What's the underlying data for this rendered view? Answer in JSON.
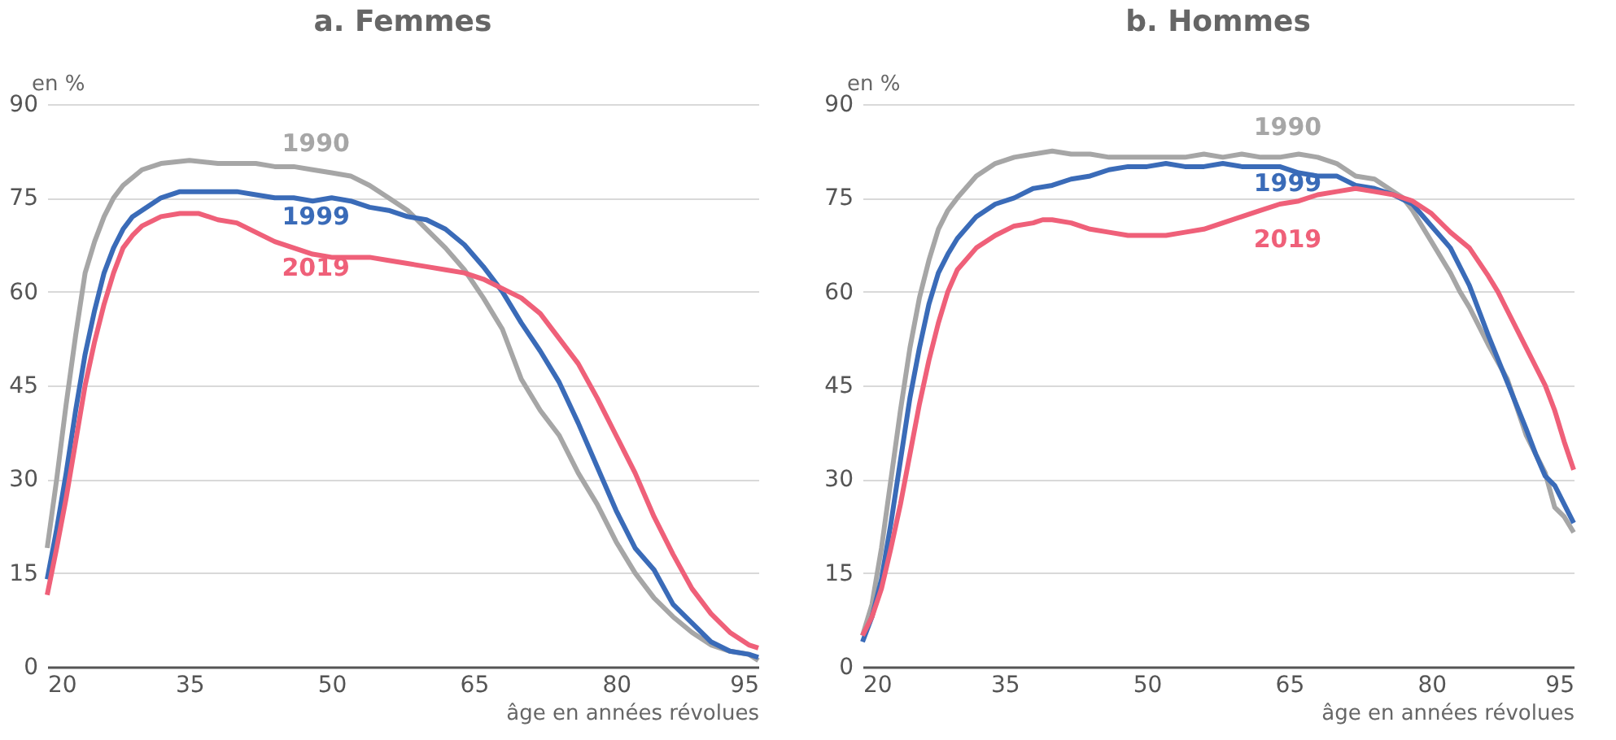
{
  "chart_data": [
    {
      "type": "line",
      "title": "a. Femmes",
      "ylabel": "en %",
      "xlabel": "âge en années révolues",
      "xlim": [
        20,
        95
      ],
      "xticks": [
        20,
        35,
        50,
        65,
        80,
        95
      ],
      "ylim": [
        0,
        90
      ],
      "yticks": [
        0,
        15,
        30,
        45,
        60,
        75,
        90
      ],
      "grid": "y",
      "legend": false,
      "marker": "none",
      "line_style": "solid",
      "series": [
        {
          "name": "1990",
          "color": "#a6a6a6",
          "x": [
            20,
            21,
            22,
            23,
            24,
            25,
            26,
            27,
            28,
            30,
            32,
            35,
            38,
            40,
            42,
            44,
            46,
            48,
            50,
            52,
            54,
            56,
            58,
            60,
            62,
            64,
            66,
            68,
            69,
            70,
            72,
            74,
            76,
            78,
            80,
            82,
            84,
            86,
            88,
            90,
            92,
            94,
            95
          ],
          "values": [
            19,
            30,
            42,
            53,
            63,
            68,
            72,
            75,
            77,
            79.5,
            80.5,
            81,
            80.5,
            80.5,
            80.5,
            80,
            80,
            79.5,
            79,
            78.5,
            77,
            75,
            73,
            70,
            67,
            63.5,
            59,
            54,
            50,
            46,
            41,
            37,
            31,
            26,
            20,
            15,
            11,
            8,
            5.5,
            3.5,
            2.5,
            2,
            1
          ]
        },
        {
          "name": "1999",
          "color": "#3a6bb8",
          "x": [
            20,
            21,
            22,
            23,
            24,
            25,
            26,
            27,
            28,
            29,
            30,
            32,
            34,
            36,
            38,
            40,
            42,
            44,
            46,
            48,
            50,
            52,
            54,
            56,
            58,
            60,
            62,
            64,
            66,
            68,
            70,
            72,
            74,
            76,
            78,
            80,
            82,
            84,
            86,
            88,
            90,
            92,
            94,
            95
          ],
          "values": [
            14,
            22,
            31,
            41,
            50,
            57,
            63,
            67,
            70,
            72,
            73,
            75,
            76,
            76,
            76,
            76,
            75.5,
            75,
            75,
            74.5,
            75,
            74.5,
            73.5,
            73,
            72,
            71.5,
            70,
            67.5,
            64,
            60,
            55,
            50.5,
            45.5,
            39,
            32,
            25,
            19,
            15.5,
            10,
            7,
            4,
            2.5,
            2,
            1.5
          ]
        },
        {
          "name": "2019",
          "color": "#ef6079",
          "x": [
            20,
            21,
            22,
            23,
            24,
            25,
            26,
            27,
            28,
            29,
            30,
            32,
            34,
            36,
            38,
            40,
            42,
            44,
            46,
            48,
            50,
            52,
            54,
            56,
            58,
            60,
            62,
            64,
            66,
            68,
            70,
            72,
            74,
            76,
            78,
            80,
            82,
            84,
            86,
            88,
            90,
            92,
            94,
            95
          ],
          "values": [
            11.5,
            19,
            27,
            36,
            45,
            52,
            58,
            63,
            67,
            69,
            70.5,
            72,
            72.5,
            72.5,
            71.5,
            71,
            69.5,
            68,
            67,
            66,
            65.5,
            65.5,
            65.5,
            65,
            64.5,
            64,
            63.5,
            63,
            62,
            60.5,
            59,
            56.5,
            52.5,
            48.5,
            43,
            37,
            31,
            24,
            18,
            12.5,
            8.5,
            5.5,
            3.5,
            3
          ]
        }
      ]
    },
    {
      "type": "line",
      "title": "b. Hommes",
      "ylabel": "en %",
      "xlabel": "âge en années révolues",
      "xlim": [
        20,
        95
      ],
      "xticks": [
        20,
        35,
        50,
        65,
        80,
        95
      ],
      "ylim": [
        0,
        90
      ],
      "yticks": [
        0,
        15,
        30,
        45,
        60,
        75,
        90
      ],
      "grid": "y",
      "legend": false,
      "marker": "none",
      "line_style": "solid",
      "series": [
        {
          "name": "1990",
          "color": "#a6a6a6",
          "x": [
            20,
            21,
            22,
            23,
            24,
            25,
            26,
            27,
            28,
            29,
            30,
            32,
            34,
            36,
            38,
            40,
            42,
            44,
            46,
            48,
            50,
            52,
            54,
            56,
            58,
            60,
            62,
            64,
            66,
            68,
            70,
            72,
            74,
            76,
            77,
            78,
            80,
            82,
            83,
            84,
            86,
            88,
            90,
            91,
            92,
            93,
            94,
            95
          ],
          "values": [
            5,
            10,
            19,
            30,
            41,
            51,
            59,
            65,
            70,
            73,
            75,
            78.5,
            80.5,
            81.5,
            82,
            82.5,
            82,
            82,
            81.5,
            81.5,
            81.5,
            81.5,
            81.5,
            82,
            81.5,
            82,
            81.5,
            81.5,
            82,
            81.5,
            80.5,
            78.5,
            78,
            76,
            75,
            73,
            68,
            63,
            60,
            57.5,
            51.5,
            46,
            37,
            34,
            31,
            25.5,
            24,
            21.5
          ]
        },
        {
          "name": "1999",
          "color": "#3a6bb8",
          "x": [
            20,
            21,
            22,
            23,
            24,
            25,
            26,
            27,
            28,
            29,
            30,
            32,
            34,
            36,
            38,
            40,
            42,
            44,
            46,
            48,
            50,
            52,
            54,
            56,
            58,
            60,
            62,
            64,
            66,
            68,
            70,
            72,
            74,
            76,
            78,
            80,
            82,
            84,
            86,
            88,
            90,
            91,
            92,
            93,
            94,
            95
          ],
          "values": [
            4,
            8,
            14,
            23,
            33,
            43,
            51,
            58,
            63,
            66,
            68.5,
            72,
            74,
            75,
            76.5,
            77,
            78,
            78.5,
            79.5,
            80,
            80,
            80.5,
            80,
            80,
            80.5,
            80,
            80,
            80,
            79,
            78.5,
            78.5,
            77,
            76.5,
            75.5,
            74,
            70.5,
            67,
            61,
            53,
            45.5,
            38,
            34,
            30.5,
            29,
            26,
            23
          ]
        },
        {
          "name": "2019",
          "color": "#ef6079",
          "x": [
            20,
            21,
            22,
            23,
            24,
            25,
            26,
            27,
            28,
            29,
            30,
            32,
            34,
            36,
            38,
            39,
            40,
            42,
            44,
            46,
            48,
            50,
            52,
            54,
            56,
            58,
            60,
            62,
            64,
            66,
            68,
            70,
            72,
            74,
            76,
            78,
            80,
            82,
            84,
            86,
            87,
            88,
            90,
            92,
            93,
            94,
            95
          ],
          "values": [
            5,
            8,
            12.5,
            19,
            26,
            34,
            42,
            49,
            55,
            60,
            63.5,
            67,
            69,
            70.5,
            71,
            71.5,
            71.5,
            71,
            70,
            69.5,
            69,
            69,
            69,
            69.5,
            70,
            71,
            72,
            73,
            74,
            74.5,
            75.5,
            76,
            76.5,
            76,
            75.5,
            74.5,
            72.5,
            69.5,
            67,
            62.5,
            60,
            57,
            51,
            45,
            41,
            36,
            31.5
          ]
        }
      ]
    }
  ]
}
